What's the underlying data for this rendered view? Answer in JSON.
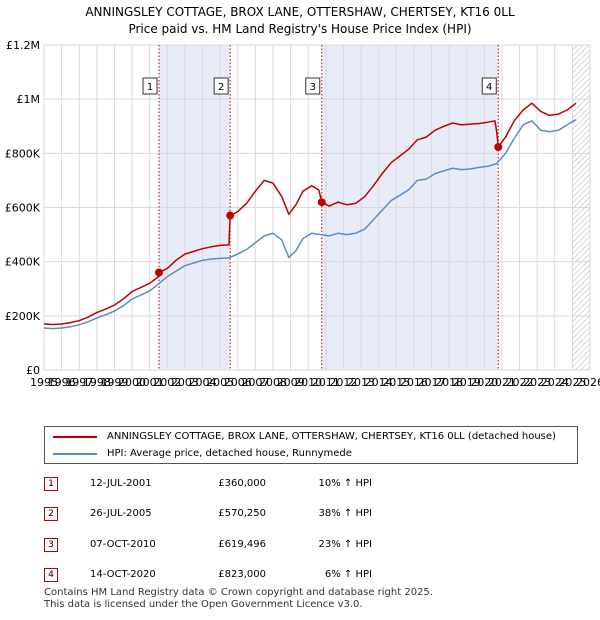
{
  "title_line1": "ANNINGSLEY COTTAGE, BROX LANE, OTTERSHAW, CHERTSEY, KT16 0LL",
  "title_line2": "Price paid vs. HM Land Registry's House Price Index (HPI)",
  "colors": {
    "property": "#c00000",
    "hpi": "#5b8cc4",
    "band": "#e8ecf8",
    "grid": "#d9d9d9",
    "hatch": "#bbbbbb"
  },
  "legend": [
    {
      "label": "ANNINGSLEY COTTAGE, BROX LANE, OTTERSHAW, CHERTSEY, KT16 0LL (detached house)",
      "color": "#c00000"
    },
    {
      "label": "HPI: Average price, detached house, Runnymede",
      "color": "#5b8cc4"
    }
  ],
  "transactions": [
    {
      "num": "1",
      "date": "12-JUL-2001",
      "price": "£360,000",
      "hpi": "10% ↑ HPI"
    },
    {
      "num": "2",
      "date": "26-JUL-2005",
      "price": "£570,250",
      "hpi": "38% ↑ HPI"
    },
    {
      "num": "3",
      "date": "07-OCT-2010",
      "price": "£619,496",
      "hpi": "23% ↑ HPI"
    },
    {
      "num": "4",
      "date": "14-OCT-2020",
      "price": "£823,000",
      "hpi": "6% ↑ HPI"
    }
  ],
  "footer_line1": "Contains HM Land Registry data © Crown copyright and database right 2025.",
  "footer_line2": "This data is licensed under the Open Government Licence v3.0.",
  "chart_data": {
    "type": "line",
    "title": "ANNINGSLEY COTTAGE, BROX LANE, OTTERSHAW, CHERTSEY, KT16 0LL — Price paid vs. HM Land Registry's House Price Index (HPI)",
    "xlabel": "",
    "ylabel": "",
    "xlim": [
      1995,
      2026
    ],
    "ylim": [
      0,
      1200000
    ],
    "x_ticks": [
      1995,
      1996,
      1997,
      1998,
      1999,
      2000,
      2001,
      2002,
      2003,
      2004,
      2005,
      2006,
      2007,
      2008,
      2009,
      2010,
      2011,
      2012,
      2013,
      2014,
      2015,
      2016,
      2017,
      2018,
      2019,
      2020,
      2021,
      2022,
      2023,
      2024,
      2025,
      2026
    ],
    "y_ticks": [
      {
        "value": 0,
        "label": "£0"
      },
      {
        "value": 200000,
        "label": "£200K"
      },
      {
        "value": 400000,
        "label": "£400K"
      },
      {
        "value": 600000,
        "label": "£600K"
      },
      {
        "value": 800000,
        "label": "£800K"
      },
      {
        "value": 1000000,
        "label": "£1M"
      },
      {
        "value": 1200000,
        "label": "£1.2M"
      }
    ],
    "grid": true,
    "shaded_bands": [
      [
        2001.53,
        2005.57
      ],
      [
        2010.77,
        2020.79
      ]
    ],
    "forecast_hatch_from": 2025.0,
    "sales": [
      {
        "label": "1",
        "x": 2001.53,
        "y": 360000
      },
      {
        "label": "2",
        "x": 2005.57,
        "y": 570250
      },
      {
        "label": "3",
        "x": 2010.77,
        "y": 619496
      },
      {
        "label": "4",
        "x": 2020.79,
        "y": 823000
      }
    ],
    "series": [
      {
        "name": "ANNINGSLEY COTTAGE, BROX LANE, OTTERSHAW, CHERTSEY, KT16 0LL (detached house)",
        "points": [
          [
            1995.0,
            170000
          ],
          [
            1995.5,
            168000
          ],
          [
            1996.0,
            170000
          ],
          [
            1996.5,
            175000
          ],
          [
            1997.0,
            182000
          ],
          [
            1997.5,
            195000
          ],
          [
            1998.0,
            212000
          ],
          [
            1998.5,
            225000
          ],
          [
            1999.0,
            240000
          ],
          [
            1999.5,
            262000
          ],
          [
            2000.0,
            290000
          ],
          [
            2000.5,
            305000
          ],
          [
            2001.0,
            320000
          ],
          [
            2001.5,
            345000
          ],
          [
            2001.53,
            360000
          ],
          [
            2002.0,
            375000
          ],
          [
            2002.5,
            405000
          ],
          [
            2003.0,
            428000
          ],
          [
            2003.5,
            438000
          ],
          [
            2004.0,
            448000
          ],
          [
            2004.5,
            455000
          ],
          [
            2005.0,
            460000
          ],
          [
            2005.5,
            462000
          ],
          [
            2005.57,
            570250
          ],
          [
            2006.0,
            585000
          ],
          [
            2006.5,
            615000
          ],
          [
            2007.0,
            660000
          ],
          [
            2007.5,
            700000
          ],
          [
            2008.0,
            690000
          ],
          [
            2008.5,
            640000
          ],
          [
            2008.9,
            575000
          ],
          [
            2009.3,
            610000
          ],
          [
            2009.7,
            660000
          ],
          [
            2010.2,
            680000
          ],
          [
            2010.6,
            665000
          ],
          [
            2010.77,
            619496
          ],
          [
            2011.2,
            605000
          ],
          [
            2011.7,
            620000
          ],
          [
            2012.2,
            610000
          ],
          [
            2012.7,
            615000
          ],
          [
            2013.2,
            640000
          ],
          [
            2013.7,
            680000
          ],
          [
            2014.2,
            725000
          ],
          [
            2014.7,
            765000
          ],
          [
            2015.2,
            790000
          ],
          [
            2015.7,
            815000
          ],
          [
            2016.2,
            850000
          ],
          [
            2016.7,
            860000
          ],
          [
            2017.2,
            885000
          ],
          [
            2017.7,
            900000
          ],
          [
            2018.2,
            912000
          ],
          [
            2018.7,
            905000
          ],
          [
            2019.2,
            908000
          ],
          [
            2019.7,
            910000
          ],
          [
            2020.2,
            915000
          ],
          [
            2020.6,
            920000
          ],
          [
            2020.7,
            880000
          ],
          [
            2020.79,
            823000
          ],
          [
            2021.2,
            860000
          ],
          [
            2021.7,
            920000
          ],
          [
            2022.2,
            960000
          ],
          [
            2022.7,
            985000
          ],
          [
            2023.2,
            955000
          ],
          [
            2023.7,
            940000
          ],
          [
            2024.2,
            945000
          ],
          [
            2024.7,
            960000
          ],
          [
            2025.2,
            985000
          ]
        ]
      },
      {
        "name": "HPI: Average price, detached house, Runnymede",
        "points": [
          [
            1995.0,
            155000
          ],
          [
            1995.5,
            153000
          ],
          [
            1996.0,
            155000
          ],
          [
            1996.5,
            160000
          ],
          [
            1997.0,
            167000
          ],
          [
            1997.5,
            178000
          ],
          [
            1998.0,
            192000
          ],
          [
            1998.5,
            204000
          ],
          [
            1999.0,
            218000
          ],
          [
            1999.5,
            237000
          ],
          [
            2000.0,
            262000
          ],
          [
            2000.5,
            277000
          ],
          [
            2001.0,
            292000
          ],
          [
            2001.5,
            318000
          ],
          [
            2002.0,
            345000
          ],
          [
            2002.5,
            365000
          ],
          [
            2003.0,
            385000
          ],
          [
            2003.5,
            395000
          ],
          [
            2004.0,
            405000
          ],
          [
            2004.5,
            410000
          ],
          [
            2005.0,
            412000
          ],
          [
            2005.5,
            414000
          ],
          [
            2006.0,
            428000
          ],
          [
            2006.5,
            445000
          ],
          [
            2007.0,
            470000
          ],
          [
            2007.5,
            495000
          ],
          [
            2008.0,
            505000
          ],
          [
            2008.5,
            480000
          ],
          [
            2008.9,
            415000
          ],
          [
            2009.3,
            440000
          ],
          [
            2009.7,
            485000
          ],
          [
            2010.2,
            505000
          ],
          [
            2010.7,
            500000
          ],
          [
            2011.2,
            495000
          ],
          [
            2011.7,
            505000
          ],
          [
            2012.2,
            500000
          ],
          [
            2012.7,
            505000
          ],
          [
            2013.2,
            520000
          ],
          [
            2013.7,
            555000
          ],
          [
            2014.2,
            590000
          ],
          [
            2014.7,
            625000
          ],
          [
            2015.2,
            645000
          ],
          [
            2015.7,
            665000
          ],
          [
            2016.2,
            700000
          ],
          [
            2016.7,
            705000
          ],
          [
            2017.2,
            725000
          ],
          [
            2017.7,
            735000
          ],
          [
            2018.2,
            745000
          ],
          [
            2018.7,
            740000
          ],
          [
            2019.2,
            742000
          ],
          [
            2019.7,
            748000
          ],
          [
            2020.2,
            752000
          ],
          [
            2020.7,
            762000
          ],
          [
            2021.2,
            800000
          ],
          [
            2021.7,
            855000
          ],
          [
            2022.2,
            905000
          ],
          [
            2022.7,
            920000
          ],
          [
            2023.2,
            885000
          ],
          [
            2023.7,
            880000
          ],
          [
            2024.2,
            885000
          ],
          [
            2024.7,
            905000
          ],
          [
            2025.2,
            925000
          ]
        ]
      }
    ]
  }
}
